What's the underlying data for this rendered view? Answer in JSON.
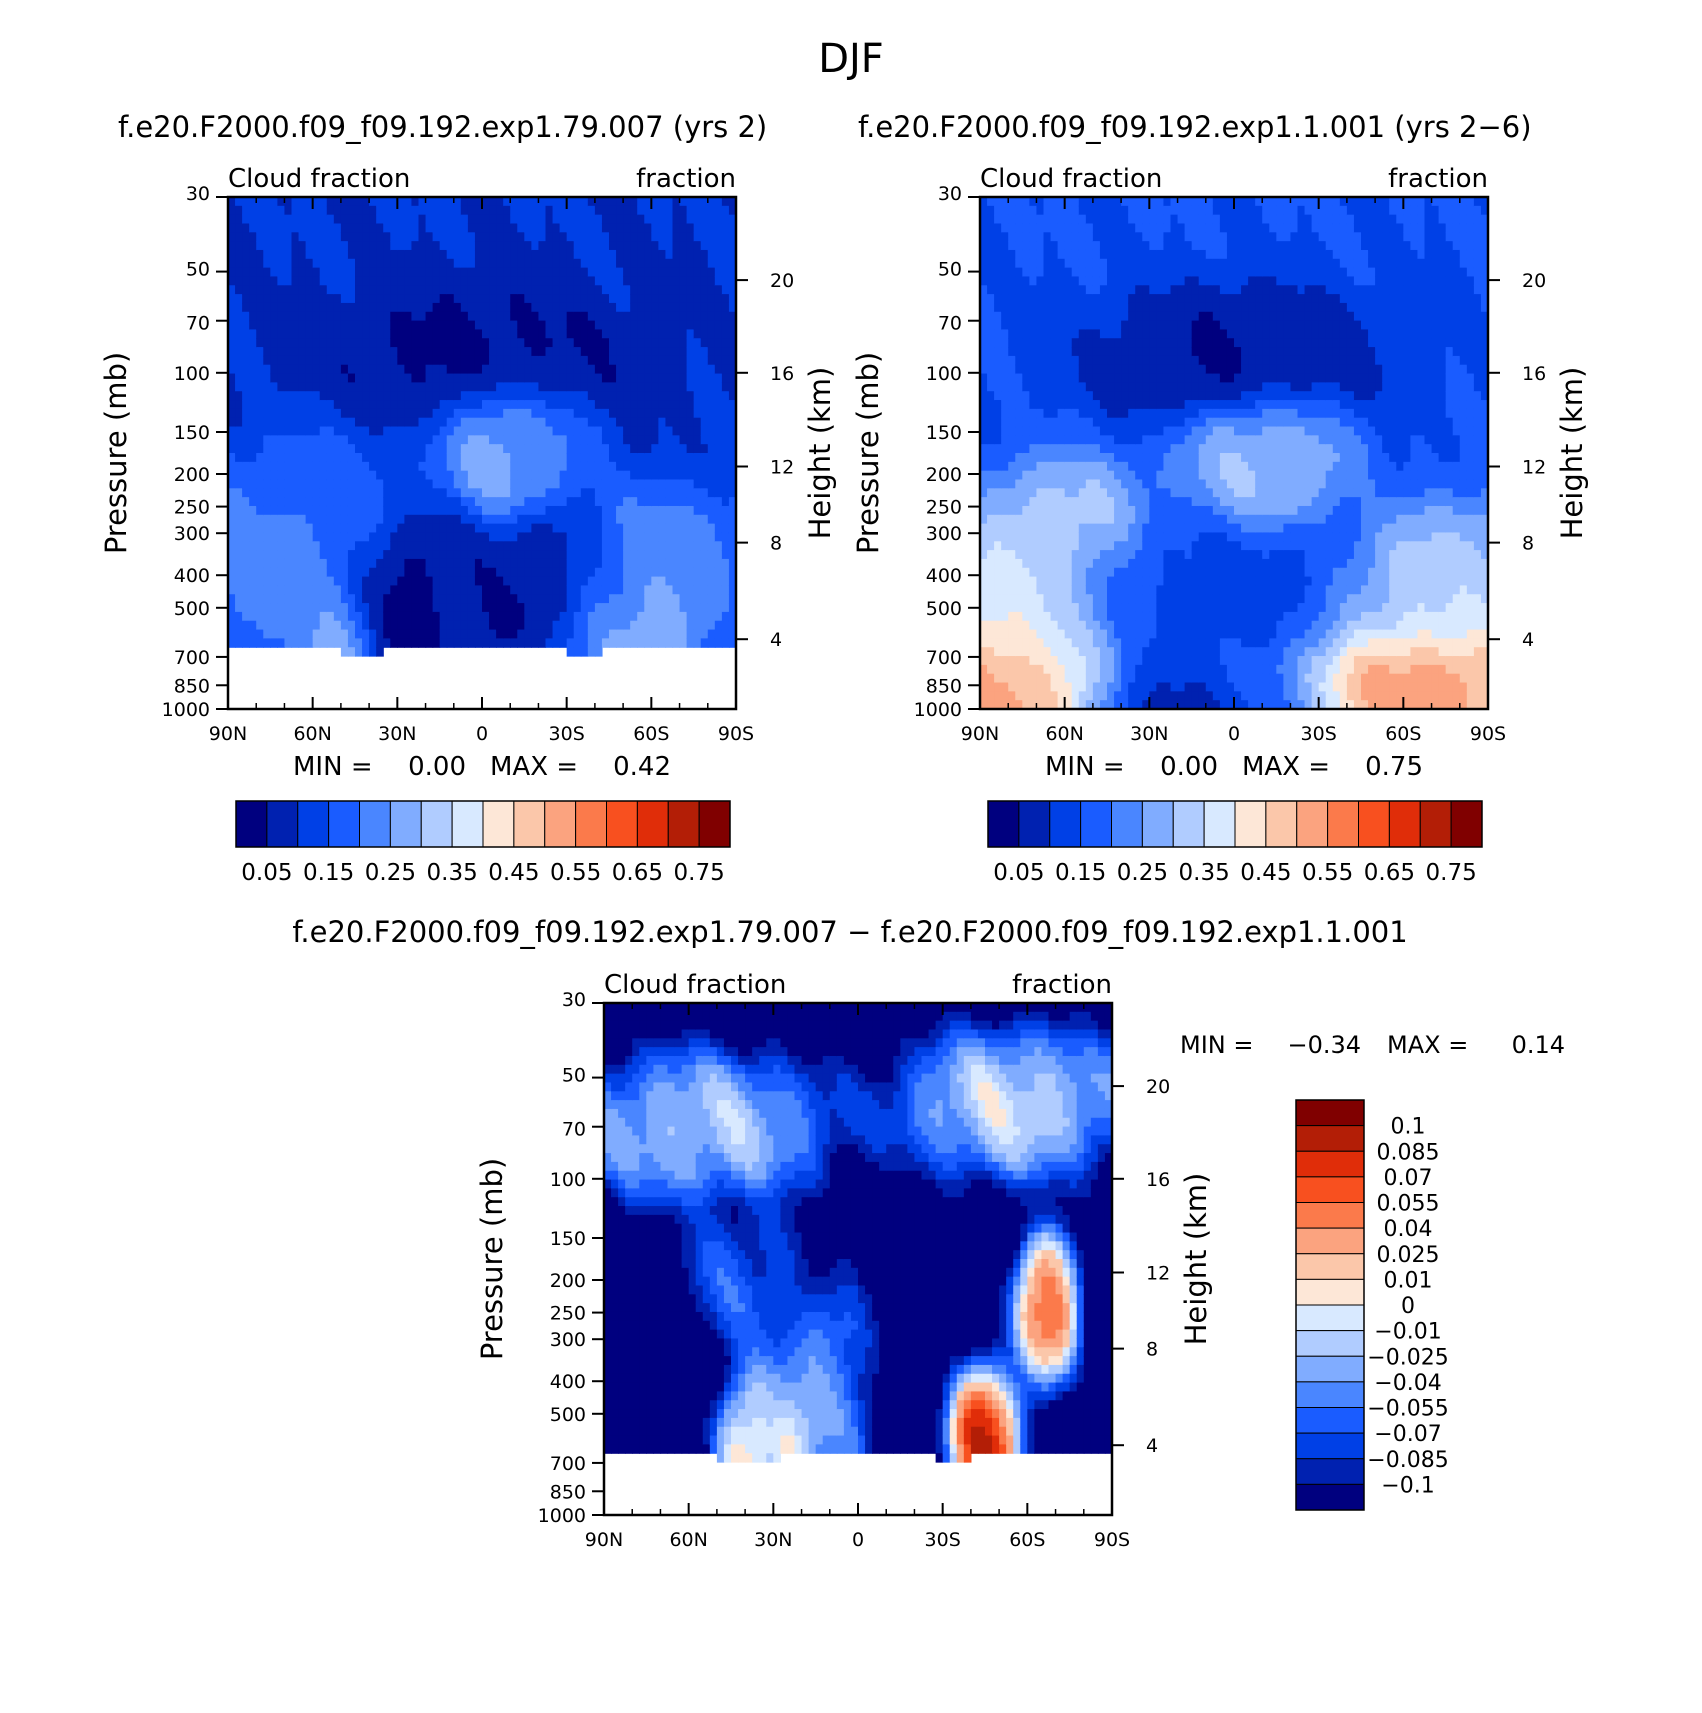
{
  "main_title": "DJF",
  "chart_data": [
    {
      "type": "heatmap",
      "title": "f.e20.F2000.f09_f09.192.exp1.79.007 (yrs 2)",
      "left_label": "Cloud fraction",
      "right_label": "fraction",
      "xlabel": "",
      "ylabel": "Pressure (mb)",
      "ylabel_right": "Height (km)",
      "x_ticks": [
        "90N",
        "60N",
        "30N",
        "0",
        "30S",
        "60S",
        "90S"
      ],
      "x_tick_values": [
        90,
        60,
        30,
        0,
        -30,
        -60,
        -90
      ],
      "xlim": [
        90,
        -90
      ],
      "y_ticks": [
        "30",
        "50",
        "70",
        "100",
        "150",
        "200",
        "250",
        "300",
        "400",
        "500",
        "700",
        "850",
        "1000"
      ],
      "y_tick_values": [
        30,
        50,
        70,
        100,
        150,
        200,
        250,
        300,
        400,
        500,
        700,
        850,
        1000
      ],
      "ylim": [
        1000,
        30
      ],
      "y_scale": "log",
      "height_ticks": [
        "20",
        "16",
        "12",
        "8",
        "4"
      ],
      "height_tick_pressures": [
        53,
        100,
        190,
        320,
        620
      ],
      "min_label": "MIN =",
      "min_value": "0.00",
      "max_label": "MAX =",
      "max_value": "0.42",
      "colorbar": {
        "orientation": "horizontal",
        "labels": [
          "0.05",
          "0.15",
          "0.25",
          "0.35",
          "0.45",
          "0.55",
          "0.65",
          "0.75"
        ],
        "colors": [
          "#00007f",
          "#0021b0",
          "#0040e6",
          "#1a5cff",
          "#4a86ff",
          "#80acff",
          "#b0ccff",
          "#d8e9ff",
          "#fde7d7",
          "#fbc7aa",
          "#fba37f",
          "#fb7a4b",
          "#f8501f",
          "#e02d09",
          "#b31e06",
          "#800000"
        ]
      },
      "blobs": [
        {
          "lat": 0,
          "p": 90,
          "r": 100,
          "v": 0.03
        },
        {
          "lat": 75,
          "p": 310,
          "r": 90,
          "v": 0.24
        },
        {
          "lat": 70,
          "p": 420,
          "r": 60,
          "v": 0.26
        },
        {
          "lat": 52,
          "p": 570,
          "r": 28,
          "v": 0.32
        },
        {
          "lat": 60,
          "p": 240,
          "r": 70,
          "v": 0.18
        },
        {
          "lat": 25,
          "p": 420,
          "r": 80,
          "v": 0.0
        },
        {
          "lat": 5,
          "p": 400,
          "r": 45,
          "v": 0.12
        },
        {
          "lat": -10,
          "p": 170,
          "r": 55,
          "v": 0.27
        },
        {
          "lat": -5,
          "p": 180,
          "r": 30,
          "v": 0.3
        },
        {
          "lat": -20,
          "p": 420,
          "r": 85,
          "v": 0.02
        },
        {
          "lat": -55,
          "p": 570,
          "r": 45,
          "v": 0.38
        },
        {
          "lat": -62,
          "p": 360,
          "r": 70,
          "v": 0.26
        },
        {
          "lat": -45,
          "p": 600,
          "r": 50,
          "v": 0.2
        }
      ],
      "field_default": 0.1,
      "mask_pressure": 640,
      "mask_exceptions": [
        [
          50,
          35
        ],
        [
          -30,
          -42
        ]
      ]
    },
    {
      "type": "heatmap",
      "title": "f.e20.F2000.f09_f09.192.exp1.1.001 (yrs 2−6)",
      "left_label": "Cloud fraction",
      "right_label": "fraction",
      "xlabel": "",
      "ylabel": "Pressure (mb)",
      "ylabel_right": "Height (km)",
      "x_ticks": [
        "90N",
        "60N",
        "30N",
        "0",
        "30S",
        "60S",
        "90S"
      ],
      "x_tick_values": [
        90,
        60,
        30,
        0,
        -30,
        -60,
        -90
      ],
      "xlim": [
        90,
        -90
      ],
      "y_ticks": [
        "30",
        "50",
        "70",
        "100",
        "150",
        "200",
        "250",
        "300",
        "400",
        "500",
        "700",
        "850",
        "1000"
      ],
      "y_tick_values": [
        30,
        50,
        70,
        100,
        150,
        200,
        250,
        300,
        400,
        500,
        700,
        850,
        1000
      ],
      "ylim": [
        1000,
        30
      ],
      "y_scale": "log",
      "height_ticks": [
        "20",
        "16",
        "12",
        "8",
        "4"
      ],
      "height_tick_pressures": [
        53,
        100,
        190,
        320,
        620
      ],
      "min_label": "MIN =",
      "min_value": "0.00",
      "max_label": "MAX =",
      "max_value": "0.75",
      "colorbar": {
        "orientation": "horizontal",
        "labels": [
          "0.05",
          "0.15",
          "0.25",
          "0.35",
          "0.45",
          "0.55",
          "0.65",
          "0.75"
        ],
        "colors": [
          "#00007f",
          "#0021b0",
          "#0040e6",
          "#1a5cff",
          "#4a86ff",
          "#80acff",
          "#b0ccff",
          "#d8e9ff",
          "#fde7d7",
          "#fbc7aa",
          "#fba37f",
          "#fb7a4b",
          "#f8501f",
          "#e02d09",
          "#b31e06",
          "#800000"
        ]
      },
      "blobs": [
        {
          "lat": 0,
          "p": 90,
          "r": 100,
          "v": 0.03
        },
        {
          "lat": 80,
          "p": 500,
          "r": 130,
          "v": 0.44
        },
        {
          "lat": 85,
          "p": 950,
          "r": 60,
          "v": 0.62
        },
        {
          "lat": 72,
          "p": 750,
          "r": 90,
          "v": 0.47
        },
        {
          "lat": 60,
          "p": 300,
          "r": 60,
          "v": 0.36
        },
        {
          "lat": 35,
          "p": 500,
          "r": 80,
          "v": 0.05
        },
        {
          "lat": 20,
          "p": 420,
          "r": 60,
          "v": 0.15
        },
        {
          "lat": -10,
          "p": 180,
          "r": 60,
          "v": 0.33
        },
        {
          "lat": -18,
          "p": 500,
          "r": 90,
          "v": 0.1
        },
        {
          "lat": -60,
          "p": 820,
          "r": 110,
          "v": 0.62
        },
        {
          "lat": -65,
          "p": 500,
          "r": 80,
          "v": 0.38
        },
        {
          "lat": -80,
          "p": 400,
          "r": 60,
          "v": 0.33
        },
        {
          "lat": 30,
          "p": 960,
          "r": 50,
          "v": 0.04
        },
        {
          "lat": -10,
          "p": 960,
          "r": 60,
          "v": 0.08
        }
      ],
      "field_default": 0.15,
      "mask_pressure": 1000,
      "mask_exceptions": []
    },
    {
      "type": "heatmap",
      "title": "f.e20.F2000.f09_f09.192.exp1.79.007 − f.e20.F2000.f09_f09.192.exp1.1.001",
      "left_label": "Cloud fraction",
      "right_label": "fraction",
      "xlabel": "",
      "ylabel": "Pressure (mb)",
      "ylabel_right": "Height (km)",
      "x_ticks": [
        "90N",
        "60N",
        "30N",
        "0",
        "30S",
        "60S",
        "90S"
      ],
      "x_tick_values": [
        90,
        60,
        30,
        0,
        -30,
        -60,
        -90
      ],
      "xlim": [
        90,
        -90
      ],
      "y_ticks": [
        "30",
        "50",
        "70",
        "100",
        "150",
        "200",
        "250",
        "300",
        "400",
        "500",
        "700",
        "850",
        "1000"
      ],
      "y_tick_values": [
        30,
        50,
        70,
        100,
        150,
        200,
        250,
        300,
        400,
        500,
        700,
        850,
        1000
      ],
      "ylim": [
        1000,
        30
      ],
      "y_scale": "log",
      "height_ticks": [
        "20",
        "16",
        "12",
        "8",
        "4"
      ],
      "height_tick_pressures": [
        53,
        100,
        190,
        320,
        620
      ],
      "min_label": "MIN =",
      "min_value": "−0.34",
      "max_label": "MAX =",
      "max_value": "0.14",
      "colorbar": {
        "orientation": "vertical",
        "labels": [
          "0.1",
          "0.085",
          "0.07",
          "0.055",
          "0.04",
          "0.025",
          "0.01",
          "0",
          "−0.01",
          "−0.025",
          "−0.04",
          "−0.055",
          "−0.07",
          "−0.085",
          "−0.1"
        ],
        "colors": [
          "#800000",
          "#b31e06",
          "#e02d09",
          "#f8501f",
          "#fb7a4b",
          "#fba37f",
          "#fbc7aa",
          "#fde7d7",
          "#d8e9ff",
          "#b0ccff",
          "#80acff",
          "#4a86ff",
          "#1a5cff",
          "#0040e6",
          "#0021b0",
          "#00007f"
        ]
      },
      "blobs": [
        {
          "lat": 55,
          "p": 70,
          "r": 90,
          "v": -0.005
        },
        {
          "lat": -55,
          "p": 60,
          "r": 80,
          "v": 0.005
        },
        {
          "lat": -67,
          "p": 240,
          "r": 22,
          "v": 0.08
        },
        {
          "lat": 40,
          "p": 200,
          "r": 45,
          "v": -0.06
        },
        {
          "lat": 20,
          "p": 430,
          "r": 40,
          "v": -0.05
        },
        {
          "lat": 10,
          "p": 350,
          "r": 25,
          "v": -0.03
        },
        {
          "lat": 22,
          "p": 600,
          "r": 22,
          "v": 0.05
        },
        {
          "lat": 38,
          "p": 600,
          "r": 22,
          "v": 0.04
        },
        {
          "lat": -45,
          "p": 600,
          "r": 25,
          "v": 0.11
        },
        {
          "lat": 10,
          "p": 550,
          "r": 30,
          "v": -0.05
        }
      ],
      "field_default": -0.13,
      "mask_pressure": 640,
      "mask_exceptions": [
        [
          50,
          27
        ],
        [
          -28,
          -40
        ]
      ]
    }
  ]
}
